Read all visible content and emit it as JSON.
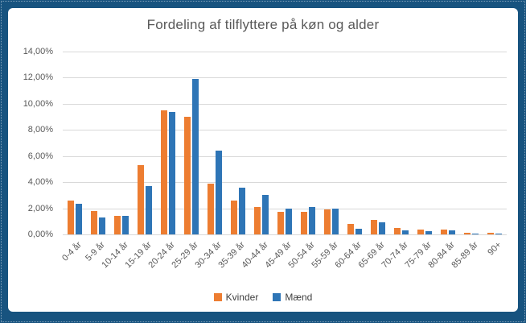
{
  "window": {
    "frame_color": "#17537F",
    "panel_color": "#FFFFFF"
  },
  "chart_data": {
    "type": "bar",
    "title": "Fordeling af tilflyttere på køn og alder",
    "xlabel": "",
    "ylabel": "",
    "categories": [
      "0-4 år",
      "5-9 år",
      "10-14 år",
      "15-19 år",
      "20-24 år",
      "25-29 år",
      "30-34 år",
      "35-39 år",
      "40-44 år",
      "45-49 år",
      "50-54 år",
      "55-59 år",
      "60-64 år",
      "65-69 år",
      "70-74 år",
      "75-79 år",
      "80-84 år",
      "85-89 år",
      "90+"
    ],
    "series": [
      {
        "name": "Kvinder",
        "color": "#ED7D31",
        "values": [
          2.6,
          1.8,
          1.45,
          5.3,
          9.5,
          9.0,
          3.9,
          2.6,
          2.1,
          1.7,
          1.7,
          1.9,
          0.8,
          1.1,
          0.5,
          0.4,
          0.4,
          0.1,
          0.1
        ]
      },
      {
        "name": "Mænd",
        "color": "#2E75B6",
        "values": [
          2.35,
          1.3,
          1.45,
          3.7,
          9.4,
          11.9,
          6.4,
          3.6,
          3.0,
          2.0,
          2.1,
          2.0,
          0.45,
          0.95,
          0.3,
          0.25,
          0.3,
          0.05,
          0.05
        ]
      }
    ],
    "ylim": [
      0,
      14
    ],
    "y_ticks": [
      {
        "value": 14,
        "label": "14,00%"
      },
      {
        "value": 12,
        "label": "12,00%"
      },
      {
        "value": 10,
        "label": "10,00%"
      },
      {
        "value": 8,
        "label": "8,00%"
      },
      {
        "value": 6,
        "label": "6,00%"
      },
      {
        "value": 4,
        "label": "4,00%"
      },
      {
        "value": 2,
        "label": "2,00%"
      },
      {
        "value": 0,
        "label": "0,00%"
      }
    ],
    "grid": true,
    "legend_position": "bottom",
    "styles": {
      "gridline_color": "#D9D9D9",
      "axis_text_color": "#595959",
      "title_color": "#595959",
      "legend_text_color": "#404040"
    }
  }
}
